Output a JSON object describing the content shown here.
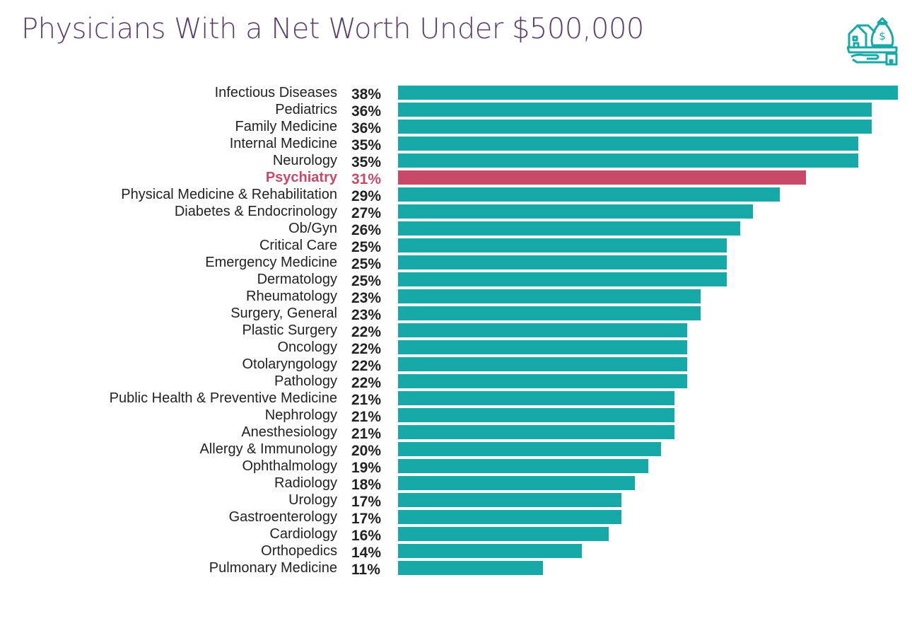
{
  "chart_data": {
    "type": "bar",
    "orientation": "horizontal",
    "title": "Physicians With a Net Worth Under $500,000",
    "categories": [
      "Infectious Diseases",
      "Pediatrics",
      "Family Medicine",
      "Internal Medicine",
      "Neurology",
      "Psychiatry",
      "Physical Medicine & Rehabilitation",
      "Diabetes & Endocrinology",
      "Ob/Gyn",
      "Critical Care",
      "Emergency Medicine",
      "Dermatology",
      "Rheumatology",
      "Surgery, General",
      "Plastic Surgery",
      "Oncology",
      "Otolaryngology",
      "Pathology",
      "Public Health & Preventive Medicine",
      "Nephrology",
      "Anesthesiology",
      "Allergy & Immunology",
      "Ophthalmology",
      "Radiology",
      "Urology",
      "Gastroenterology",
      "Cardiology",
      "Orthopedics",
      "Pulmonary Medicine"
    ],
    "values": [
      38,
      36,
      36,
      35,
      35,
      31,
      29,
      27,
      26,
      25,
      25,
      25,
      23,
      23,
      22,
      22,
      22,
      22,
      21,
      21,
      21,
      20,
      19,
      18,
      17,
      17,
      16,
      14,
      11
    ],
    "labels": [
      "38%",
      "36%",
      "36%",
      "35%",
      "35%",
      "31%",
      "29%",
      "27%",
      "26%",
      "25%",
      "25%",
      "25%",
      "23%",
      "23%",
      "22%",
      "22%",
      "22%",
      "22%",
      "21%",
      "21%",
      "21%",
      "20%",
      "19%",
      "18%",
      "17%",
      "17%",
      "16%",
      "14%",
      "11%"
    ],
    "highlight": "Psychiatry",
    "xlim": [
      0,
      38
    ],
    "grid": false,
    "colors": {
      "bar": "#17a8a8",
      "highlight": "#c94a68",
      "title": "#5a3f6e",
      "icon": "#17a8a8"
    }
  },
  "icon": "hand-holding-house-and-money-bag-icon"
}
